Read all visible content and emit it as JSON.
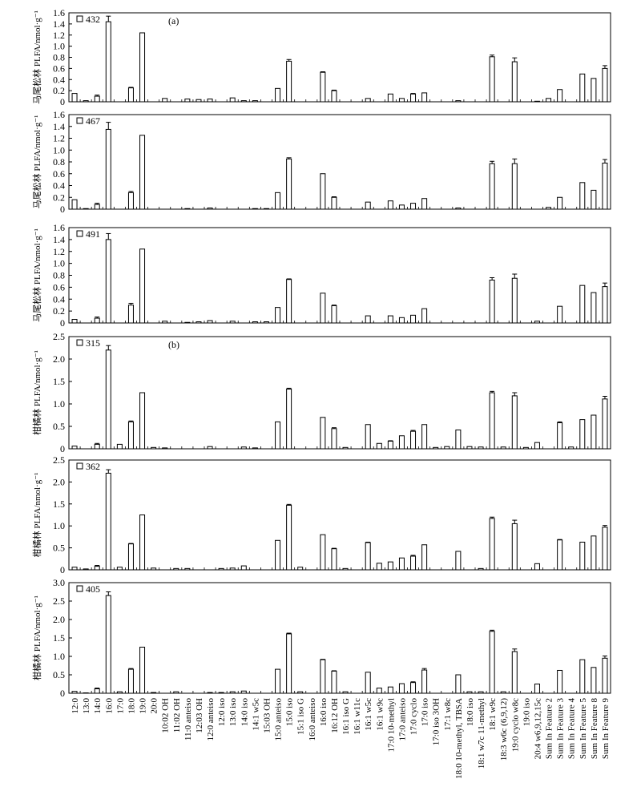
{
  "chart_data": {
    "type": "bar",
    "categories": [
      "12:0",
      "13:0",
      "14:0",
      "16:0",
      "17:0",
      "18:0",
      "19:0",
      "20:0",
      "10:02 OH",
      "11:02 OH",
      "11:0 anteiso",
      "12:03 OH",
      "12:0 anteiso",
      "12:0 iso",
      "13:0 iso",
      "14:0 iso",
      "14:1 w5c",
      "15:03 OH",
      "15:0 anteiso",
      "15:0 iso",
      "15:1 iso G",
      "16:0 anteiso",
      "16:0 iso",
      "16:12 OH",
      "16:1 iso G",
      "16:1 w11c",
      "16:1 w5c",
      "16:1 w9c",
      "17:0 10-methyl",
      "17:0 anteiso",
      "17:0 cyclo",
      "17:0 iso",
      "17:0 iso 3OH",
      "17:1 w8c",
      "18:0 10-methyl, TBSA",
      "18:0 iso",
      "18:1 w7c 11-methyl",
      "18:1 w9c",
      "18:3 w6c (6,9,12)",
      "19:0 cyclo w8c",
      "19:0 iso",
      "20:4 w6,9,12,15c",
      "Sum In Feature 2",
      "Sum In Feature 3",
      "Sum In Feature 4",
      "Sum In Feature 5",
      "Sum In Feature 8",
      "Sum In Feature 9"
    ],
    "panels": [
      {
        "ylabel": "马尾松林 PLFA/nmol·g⁻¹",
        "legend": "432",
        "panel_label": "(a)",
        "ylim": [
          0,
          1.6
        ],
        "yticks": [
          "0",
          "0.2",
          "0.4",
          "0.6",
          "0.8",
          "1.0",
          "1.2",
          "1.4",
          "1.6"
        ],
        "values": [
          0.15,
          0.02,
          0.1,
          1.44,
          0,
          0.25,
          1.24,
          0,
          0.06,
          0,
          0.05,
          0.04,
          0.05,
          0,
          0.07,
          0.02,
          0.02,
          0,
          0.24,
          0.73,
          0,
          0,
          0.53,
          0.2,
          0,
          0,
          0.06,
          0,
          0.14,
          0.06,
          0.14,
          0.16,
          0,
          0,
          0.02,
          0,
          0,
          0.81,
          0,
          0.72,
          0,
          0.01,
          0.06,
          0.22,
          0,
          0.5,
          0.42,
          0.6
        ],
        "errors": [
          0,
          0,
          0.02,
          0.1,
          0,
          0.01,
          0,
          0,
          0,
          0,
          0,
          0,
          0,
          0,
          0,
          0,
          0,
          0,
          0,
          0.03,
          0,
          0,
          0.01,
          0.01,
          0,
          0,
          0,
          0,
          0,
          0,
          0.01,
          0,
          0,
          0,
          0,
          0,
          0,
          0.03,
          0,
          0.07,
          0,
          0,
          0,
          0,
          0,
          0,
          0,
          0.05
        ]
      },
      {
        "ylabel": "马尾松林 PLFA/nmol·g⁻¹",
        "legend": "467",
        "panel_label": "",
        "ylim": [
          0,
          1.6
        ],
        "yticks": [
          "0",
          "0.2",
          "0.4",
          "0.6",
          "0.8",
          "1.0",
          "1.2",
          "1.4",
          "1.6"
        ],
        "values": [
          0.16,
          0.01,
          0.08,
          1.35,
          0,
          0.28,
          1.25,
          0,
          0,
          0,
          0.01,
          0,
          0.02,
          0,
          0,
          0,
          0.01,
          0.01,
          0.28,
          0.85,
          0,
          0,
          0.6,
          0.2,
          0,
          0,
          0.12,
          0,
          0.14,
          0.07,
          0.1,
          0.18,
          0,
          0,
          0.02,
          0,
          0,
          0.77,
          0,
          0.77,
          0,
          0,
          0.03,
          0.2,
          0,
          0.45,
          0.32,
          0.78
        ],
        "errors": [
          0,
          0,
          0.02,
          0.12,
          0,
          0.02,
          0,
          0,
          0,
          0,
          0,
          0,
          0,
          0,
          0,
          0,
          0,
          0,
          0,
          0.02,
          0,
          0,
          0,
          0.01,
          0,
          0,
          0,
          0,
          0,
          0,
          0,
          0,
          0,
          0,
          0,
          0,
          0,
          0.04,
          0,
          0.08,
          0,
          0,
          0,
          0,
          0,
          0,
          0,
          0.06
        ]
      },
      {
        "ylabel": "马尾松林 PLFA/nmol·g⁻¹",
        "legend": "491",
        "panel_label": "",
        "ylim": [
          0,
          1.6
        ],
        "yticks": [
          "0",
          "0.2",
          "0.4",
          "0.6",
          "0.8",
          "1.0",
          "1.2",
          "1.4",
          "1.6"
        ],
        "values": [
          0.06,
          0,
          0.08,
          1.4,
          0,
          0.3,
          1.24,
          0,
          0.03,
          0,
          0.01,
          0.02,
          0.04,
          0,
          0.03,
          0,
          0.02,
          0.02,
          0.26,
          0.73,
          0,
          0,
          0.5,
          0.29,
          0,
          0,
          0.12,
          0,
          0.12,
          0.09,
          0.13,
          0.24,
          0,
          0,
          0,
          0,
          0,
          0.72,
          0,
          0.75,
          0,
          0.03,
          0,
          0.28,
          0,
          0.63,
          0.51,
          0.61
        ],
        "errors": [
          0,
          0,
          0.02,
          0.1,
          0,
          0.03,
          0,
          0,
          0,
          0,
          0,
          0,
          0,
          0,
          0,
          0,
          0,
          0,
          0,
          0.01,
          0,
          0,
          0,
          0.01,
          0,
          0,
          0,
          0,
          0,
          0,
          0,
          0,
          0,
          0,
          0,
          0,
          0,
          0.04,
          0,
          0.07,
          0,
          0,
          0,
          0,
          0,
          0,
          0,
          0.06
        ]
      },
      {
        "ylabel": "柑橘林 PLFA/nmol·g⁻¹",
        "legend": "315",
        "panel_label": "(b)",
        "ylim": [
          0,
          2.5
        ],
        "yticks": [
          "0",
          "0.5",
          "1.0",
          "1.5",
          "2.0",
          "2.5"
        ],
        "values": [
          0.06,
          0,
          0.1,
          2.2,
          0.1,
          0.6,
          1.25,
          0.03,
          0.02,
          0,
          0,
          0,
          0.05,
          0,
          0,
          0.04,
          0.02,
          0,
          0.6,
          1.33,
          0,
          0,
          0.7,
          0.45,
          0.03,
          0,
          0.54,
          0.12,
          0.17,
          0.29,
          0.39,
          0.54,
          0.03,
          0.05,
          0.42,
          0.05,
          0.04,
          1.25,
          0.04,
          1.18,
          0.03,
          0.14,
          0,
          0.58,
          0.04,
          0.65,
          0.75,
          1.11
        ],
        "errors": [
          0,
          0,
          0.02,
          0.1,
          0,
          0.02,
          0,
          0,
          0,
          0,
          0,
          0,
          0,
          0,
          0,
          0,
          0,
          0,
          0,
          0.02,
          0,
          0,
          0,
          0.02,
          0,
          0,
          0,
          0,
          0.01,
          0,
          0.02,
          0,
          0,
          0,
          0,
          0,
          0,
          0.03,
          0,
          0.07,
          0,
          0,
          0,
          0.02,
          0,
          0,
          0,
          0.06
        ]
      },
      {
        "ylabel": "柑橘林 PLFA/nmol·g⁻¹",
        "legend": "362",
        "panel_label": "",
        "ylim": [
          0,
          2.5
        ],
        "yticks": [
          "0",
          "0.5",
          "1.0",
          "1.5",
          "2.0",
          "2.5"
        ],
        "values": [
          0.06,
          0.02,
          0.08,
          2.2,
          0.06,
          0.59,
          1.25,
          0.04,
          0,
          0.03,
          0.03,
          0,
          0,
          0.03,
          0.04,
          0.09,
          0,
          0,
          0.67,
          1.47,
          0.06,
          0,
          0.8,
          0.48,
          0.03,
          0,
          0.62,
          0.15,
          0.18,
          0.27,
          0.31,
          0.57,
          0,
          0,
          0.42,
          0,
          0.03,
          1.17,
          0,
          1.05,
          0,
          0.14,
          0,
          0.68,
          0,
          0.63,
          0.77,
          0.97
        ],
        "errors": [
          0,
          0,
          0.02,
          0.08,
          0,
          0.01,
          0,
          0,
          0,
          0,
          0,
          0,
          0,
          0,
          0,
          0,
          0,
          0,
          0,
          0.02,
          0,
          0,
          0,
          0.01,
          0,
          0,
          0.01,
          0,
          0,
          0,
          0.02,
          0,
          0,
          0,
          0,
          0,
          0,
          0.03,
          0,
          0.08,
          0,
          0,
          0,
          0.01,
          0,
          0,
          0,
          0.04
        ]
      },
      {
        "ylabel": "柑橘林 PLFA/nmol·g⁻¹",
        "legend": "405",
        "panel_label": "",
        "ylim": [
          0,
          3.0
        ],
        "yticks": [
          "0",
          "0.5",
          "1.0",
          "1.5",
          "2.0",
          "2.5",
          "3.0"
        ],
        "values": [
          0.05,
          0.01,
          0.12,
          2.65,
          0.04,
          0.65,
          1.25,
          0.02,
          0,
          0.04,
          0,
          0,
          0.02,
          0.02,
          0.04,
          0.06,
          0,
          0,
          0.65,
          1.61,
          0.04,
          0,
          0.91,
          0.6,
          0.04,
          0,
          0.57,
          0.14,
          0.17,
          0.26,
          0.29,
          0.63,
          0,
          0,
          0.5,
          0.04,
          0.04,
          1.68,
          0.04,
          1.13,
          0,
          0.25,
          0,
          0.62,
          0,
          0.91,
          0.7,
          0.95
        ],
        "errors": [
          0,
          0,
          0.02,
          0.1,
          0,
          0.02,
          0,
          0,
          0,
          0,
          0,
          0,
          0,
          0,
          0,
          0,
          0,
          0,
          0,
          0.02,
          0,
          0,
          0.01,
          0.01,
          0,
          0,
          0,
          0,
          0,
          0,
          0.02,
          0.04,
          0,
          0,
          0,
          0,
          0,
          0.03,
          0,
          0.07,
          0,
          0,
          0,
          0,
          0,
          0,
          0,
          0.06
        ]
      }
    ]
  }
}
